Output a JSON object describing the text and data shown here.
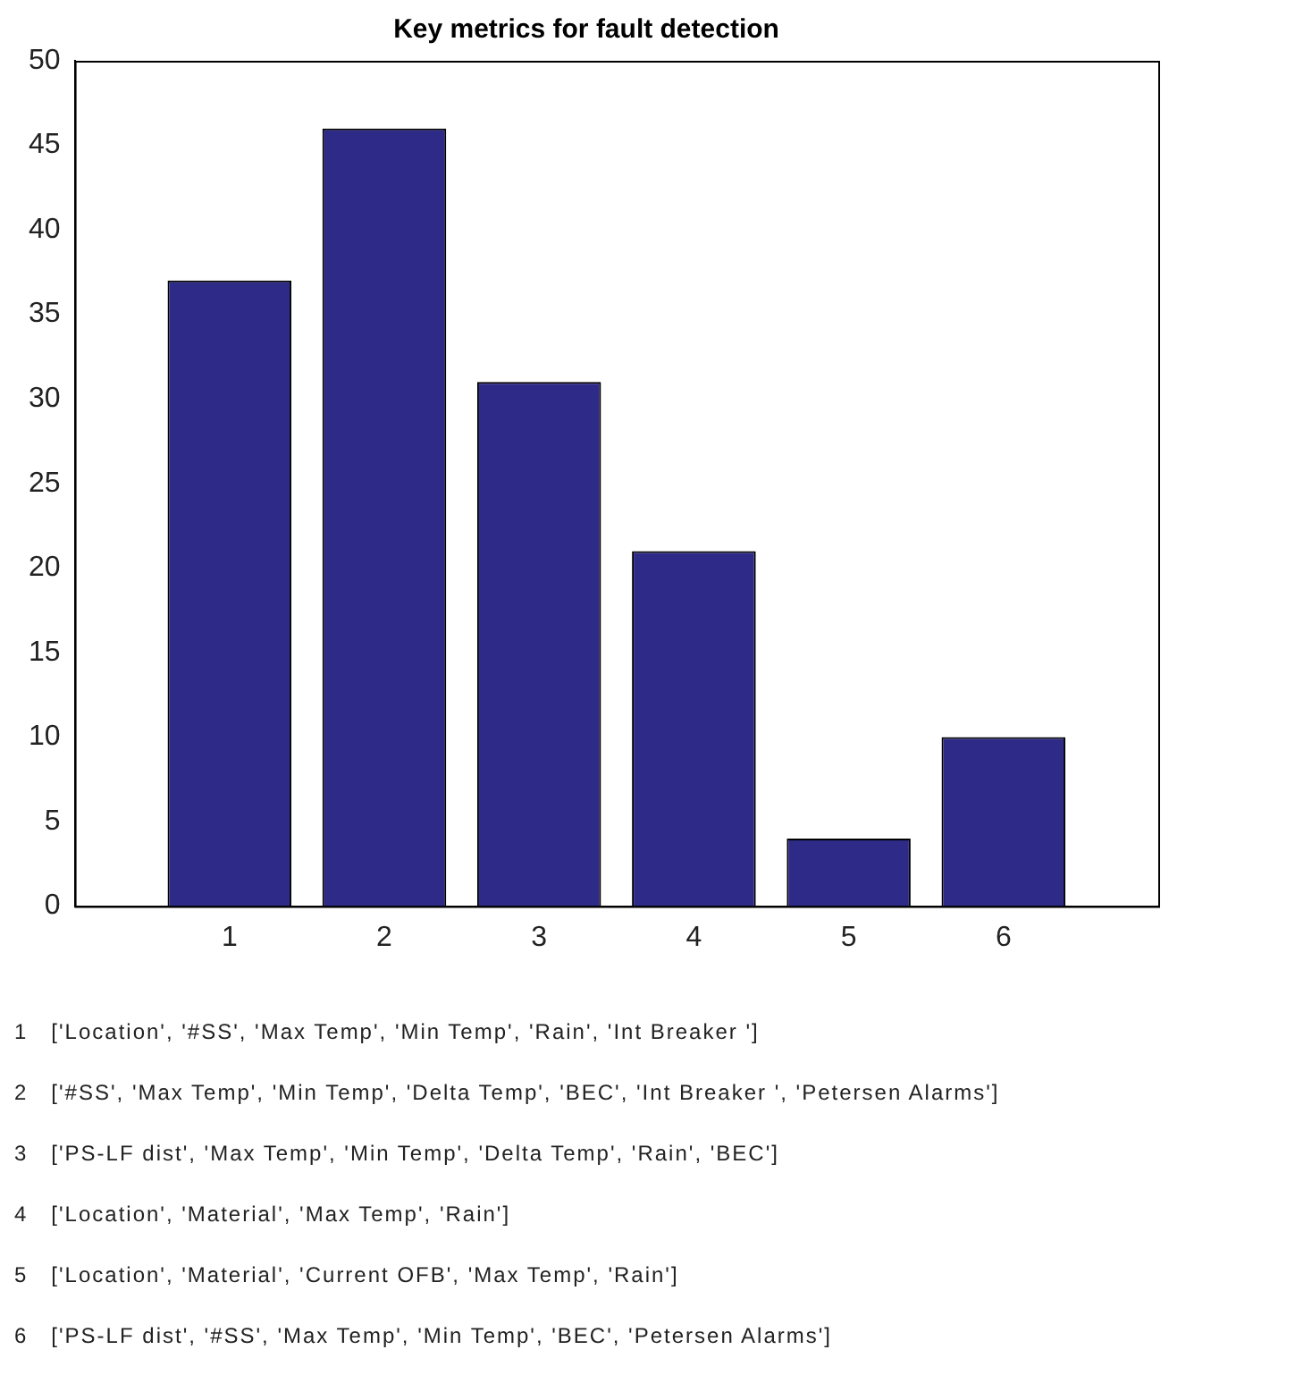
{
  "chart_data": {
    "type": "bar",
    "title": "Key metrics for fault detection",
    "x": [
      1,
      2,
      3,
      4,
      5,
      6
    ],
    "values": [
      37,
      46,
      31,
      21,
      4,
      10
    ],
    "color": "#2e2a87",
    "xlim": [
      0,
      7
    ],
    "xticks": [
      1,
      2,
      3,
      4,
      5,
      6
    ],
    "ylim": [
      0,
      50
    ],
    "yticks": [
      0,
      5,
      10,
      15,
      20,
      25,
      30,
      35,
      40,
      45,
      50
    ],
    "grid": false,
    "annotations": [
      "1   ['Location', '#SS', 'Max Temp', 'Min Temp', 'Rain', 'Int Breaker ']",
      "2   ['#SS', 'Max Temp', 'Min Temp', 'Delta Temp', 'BEC', 'Int Breaker ', 'Petersen Alarms']",
      "3   ['PS-LF dist', 'Max Temp', 'Min Temp', 'Delta Temp', 'Rain', 'BEC']",
      "4   ['Location', 'Material', 'Max Temp', 'Rain']",
      "5   ['Location', 'Material', 'Current OFB', 'Max Temp', 'Rain']",
      "6   ['PS-LF dist', '#SS', 'Max Temp', 'Min Temp', 'BEC', 'Petersen Alarms']"
    ]
  }
}
